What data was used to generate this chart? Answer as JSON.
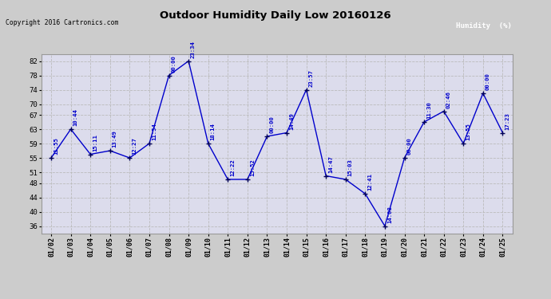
{
  "title": "Outdoor Humidity Daily Low 20160126",
  "copyright": "Copyright 2016 Cartronics.com",
  "legend_label": "Humidity  (%)",
  "x_labels": [
    "01/02",
    "01/03",
    "01/04",
    "01/05",
    "01/06",
    "01/07",
    "01/08",
    "01/09",
    "01/10",
    "01/11",
    "01/12",
    "01/13",
    "01/14",
    "01/15",
    "01/16",
    "01/17",
    "01/18",
    "01/19",
    "01/20",
    "01/21",
    "01/22",
    "01/23",
    "01/24",
    "01/25"
  ],
  "y_values": [
    55,
    63,
    56,
    57,
    55,
    59,
    78,
    82,
    59,
    49,
    49,
    61,
    62,
    74,
    50,
    49,
    45,
    36,
    55,
    65,
    68,
    59,
    73,
    62
  ],
  "time_labels": [
    "11:55",
    "10:44",
    "15:11",
    "13:49",
    "12:27",
    "11:54",
    "00:00",
    "23:34",
    "18:14",
    "12:22",
    "15:52",
    "00:00",
    "14:49",
    "23:57",
    "14:47",
    "15:03",
    "12:41",
    "14:08",
    "00:00",
    "11:30",
    "02:46",
    "13:55",
    "00:00",
    "17:23"
  ],
  "ylim": [
    34,
    84
  ],
  "yticks": [
    36,
    40,
    44,
    48,
    51,
    55,
    59,
    63,
    67,
    70,
    74,
    78,
    82
  ],
  "line_color": "#0000cc",
  "marker_color": "#000055",
  "bg_color": "#cccccc",
  "plot_bg_color": "#dcdcec",
  "grid_color": "#bbbbbb",
  "title_color": "#000000",
  "label_color": "#0000cc",
  "legend_bg": "#000099",
  "legend_text_color": "#ffffff"
}
